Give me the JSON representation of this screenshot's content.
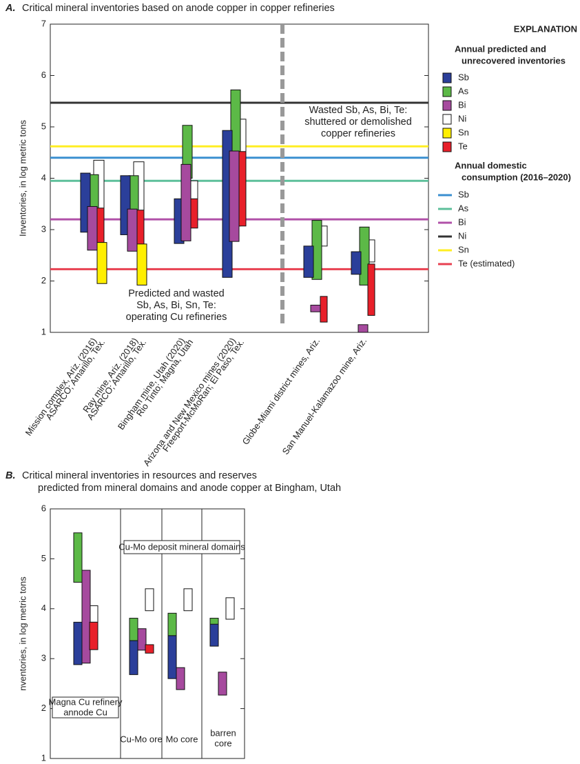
{
  "chart_data": [
    {
      "type": "range",
      "panel_label": "A.",
      "title": "Critical mineral inventories based on anode copper in copper refineries",
      "y_label": "Inventories, in log metric tons",
      "categories": [
        [
          "Mission complex, Ariz. (2016)",
          "ASARCO; Amarillo, Tex."
        ],
        [
          "Ray mine, Ariz. (2018)",
          "ASARCO; Amarillo, Tex."
        ],
        [
          "Bingham mine, Utah (2020)",
          "Rio Tinto; Magna, Utah"
        ],
        [
          "Arizona and New Mexico mines (2020)",
          "Freeport-McMoRan; El Paso, Tex."
        ],
        [
          "Globe-Miami district mines, Ariz."
        ],
        [
          "San Manuel-Kalamazoo mine, Ariz."
        ]
      ],
      "ylim": [
        1,
        7
      ],
      "yticks": [
        1,
        2,
        3,
        4,
        5,
        6,
        7
      ],
      "series": [
        {
          "name": "Sb",
          "color": "#2b3f9a",
          "low": [
            2.95,
            2.9,
            2.73,
            2.07,
            2.07,
            2.13
          ],
          "high": [
            4.1,
            4.05,
            3.6,
            4.93,
            2.68,
            2.57
          ]
        },
        {
          "name": "As",
          "color": "#5cb947",
          "low": [
            3.1,
            3.05,
            4.0,
            3.07,
            2.03,
            1.92
          ],
          "high": [
            4.07,
            4.05,
            5.03,
            5.72,
            3.18,
            3.05
          ]
        },
        {
          "name": "Bi",
          "color": "#a64a9e",
          "low": [
            2.6,
            2.58,
            2.78,
            2.77,
            1.4,
            1.0
          ],
          "high": [
            3.45,
            3.4,
            4.27,
            4.53,
            1.53,
            1.15
          ]
        },
        {
          "name": "Ni",
          "color": "#ffffff",
          "low": [
            3.15,
            3.15,
            3.53,
            3.77,
            2.68,
            2.37
          ],
          "high": [
            4.35,
            4.32,
            3.95,
            5.15,
            3.07,
            2.8
          ]
        },
        {
          "name": "Sn",
          "color": "#ffef00",
          "low": [
            1.95,
            1.92,
            null,
            null,
            null,
            null
          ],
          "high": [
            2.75,
            2.72,
            null,
            null,
            null,
            null
          ]
        },
        {
          "name": "Te",
          "color": "#e8202a",
          "low": [
            2.75,
            2.7,
            3.03,
            3.07,
            1.2,
            1.33
          ],
          "high": [
            3.42,
            3.38,
            3.6,
            4.52,
            1.7,
            2.33
          ]
        }
      ],
      "legend_title": [
        "EXPLANATION"
      ],
      "series_legend_title": [
        "Annual predicted and",
        "unrecovered inventories"
      ],
      "lines_legend_title": [
        "Annual domestic",
        "consumption (2016–2020)"
      ],
      "reference_lines": [
        {
          "name": "Sb",
          "color": "#3a8fd0",
          "value": 4.4
        },
        {
          "name": "As",
          "color": "#5cbf9a",
          "value": 3.95
        },
        {
          "name": "Bi",
          "color": "#b050a8",
          "value": 3.2
        },
        {
          "name": "Ni",
          "color": "#333333",
          "value": 5.47
        },
        {
          "name": "Sn",
          "color": "#ffee22",
          "value": 4.62
        },
        {
          "name": "Te (estimated)",
          "color": "#e84050",
          "value": 2.23
        }
      ],
      "annotations": [
        [
          "Wasted Sb, As, Bi, Te:",
          "shuttered or demolished",
          "copper refineries"
        ],
        [
          "Predicted and wasted",
          "Sb, As, Bi, Sn, Te:",
          "operating Cu refineries"
        ]
      ]
    },
    {
      "type": "range",
      "panel_label": "B.",
      "title": [
        "Critical mineral inventories in resources and reserves",
        "predicted from mineral domains and anode copper at Bingham, Utah"
      ],
      "y_label": "nventories, in log metric tons",
      "categories": [
        [
          "Magna Cu refinery",
          "annode Cu"
        ],
        [
          "Cu-Mo ore"
        ],
        [
          "Mo core"
        ],
        [
          "barren",
          "core"
        ]
      ],
      "group_label": "Cu-Mo deposit mineral domains",
      "ylim": [
        1,
        6
      ],
      "yticks": [
        1,
        2,
        3,
        4,
        5,
        6
      ],
      "series": [
        {
          "color": "#2b3f9a",
          "low": [
            2.88,
            2.68,
            2.6,
            3.25
          ],
          "high": [
            3.73,
            3.36,
            3.46,
            3.69
          ]
        },
        {
          "color": "#5cb947",
          "low": [
            4.53,
            3.36,
            3.46,
            3.37
          ],
          "high": [
            5.52,
            3.81,
            3.91,
            3.81
          ]
        },
        {
          "color": "#a64a9e",
          "low": [
            2.91,
            3.17,
            2.38,
            2.27
          ],
          "high": [
            4.77,
            3.6,
            2.82,
            2.73
          ]
        },
        {
          "color": "#ffffff",
          "low": [
            3.73,
            3.96,
            3.96,
            3.79
          ],
          "high": [
            4.06,
            4.4,
            4.4,
            4.22
          ]
        },
        {
          "color": "#e8202a",
          "low": [
            3.18,
            3.11,
            null,
            null
          ],
          "high": [
            3.73,
            3.28,
            null,
            null
          ]
        }
      ]
    }
  ]
}
